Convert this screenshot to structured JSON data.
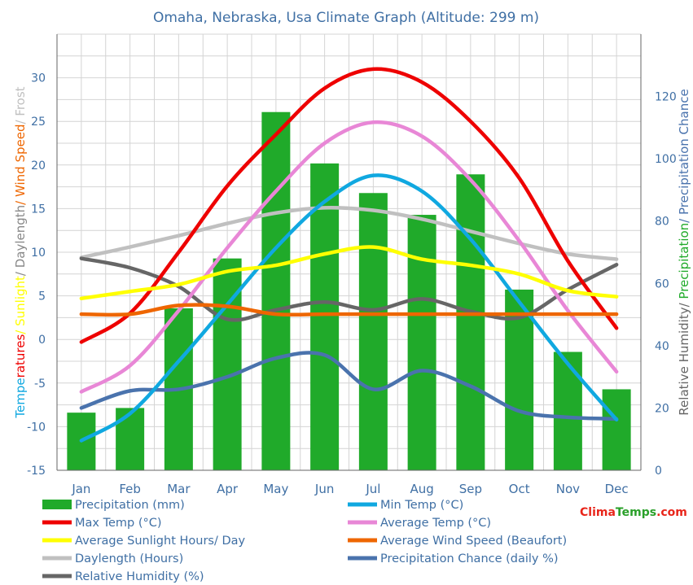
{
  "title": "Omaha, Nebraska, Usa Climate Graph (Altitude: 299 m)",
  "brand": {
    "part1": "Clima",
    "part2": "Temps",
    "part3": ".com"
  },
  "colors": {
    "text": "#3f6fa4",
    "precipitation": "#20aa2a",
    "min_temp": "#10a8e0",
    "max_temp": "#ee0000",
    "avg_temp": "#e887d6",
    "sunlight": "#ffff00",
    "wind": "#ee6600",
    "daylength": "#c0c0c0",
    "precip_chance": "#4a73ad",
    "humidity": "#666666"
  },
  "chart_data": {
    "type": "bar+line",
    "title": "Omaha, Nebraska, Usa Climate Graph (Altitude: 299 m)",
    "categories": [
      "Jan",
      "Feb",
      "Mar",
      "Apr",
      "May",
      "Jun",
      "Jul",
      "Aug",
      "Sep",
      "Oct",
      "Nov",
      "Dec"
    ],
    "left_axis": {
      "ylim": [
        -15,
        35
      ],
      "ticks": [
        30,
        25,
        20,
        15,
        10,
        5,
        0,
        -5,
        -10,
        -15
      ],
      "label_parts": [
        {
          "text": "Temperatures",
          "color": "#10a8e0",
          "split": 5
        },
        {
          "text": "/ Sunlight",
          "color": "#ffff00"
        },
        {
          "text": "/ Daylength",
          "color": "#888888"
        },
        {
          "text": "/ Wind Speed",
          "color": "#ee6600"
        },
        {
          "text": "/ Frost",
          "color": "#c0c0c0"
        }
      ]
    },
    "right_axis": {
      "ylim": [
        0,
        140
      ],
      "ticks": [
        120,
        100,
        80,
        60,
        40,
        20,
        0
      ],
      "label_parts": [
        {
          "text": "Relative Humidity",
          "color": "#666666"
        },
        {
          "text": "/ ",
          "color": "#666666"
        },
        {
          "text": "Precipitation",
          "color": "#20aa2a"
        },
        {
          "text": "/ Precipitation Chance",
          "color": "#4a73ad"
        }
      ]
    },
    "series": [
      {
        "name": "Precipitation (mm)",
        "type": "bar",
        "axis": "right",
        "color": "#20aa2a",
        "values": [
          18.5,
          20,
          52,
          68,
          115,
          98.5,
          89,
          82,
          95,
          58,
          38,
          26
        ]
      },
      {
        "name": "Min Temp (°C)",
        "type": "line",
        "axis": "left",
        "color": "#10a8e0",
        "values": [
          -11.6,
          -8.5,
          -2.5,
          4.0,
          10.5,
          15.8,
          18.8,
          17.0,
          11.5,
          4.3,
          -2.8,
          -9.2
        ]
      },
      {
        "name": "Max Temp (°C)",
        "type": "line",
        "axis": "left",
        "color": "#ee0000",
        "values": [
          -0.3,
          3.0,
          10.0,
          17.6,
          23.5,
          28.8,
          31.0,
          29.5,
          25.0,
          18.5,
          9.0,
          1.3
        ]
      },
      {
        "name": "Average Temp (°C)",
        "type": "line",
        "axis": "left",
        "color": "#e887d6",
        "values": [
          -6.0,
          -3.0,
          3.3,
          10.5,
          17.0,
          22.5,
          24.9,
          23.3,
          18.3,
          11.3,
          3.3,
          -3.7
        ]
      },
      {
        "name": "Average Sunlight Hours/ Day",
        "type": "line",
        "axis": "left",
        "color": "#ffff00",
        "values": [
          4.7,
          5.5,
          6.3,
          7.8,
          8.5,
          9.8,
          10.6,
          9.2,
          8.5,
          7.5,
          5.6,
          4.9
        ]
      },
      {
        "name": "Average Wind Speed (Beaufort)",
        "type": "line",
        "axis": "left",
        "color": "#ee6600",
        "values": [
          2.9,
          2.9,
          3.9,
          3.8,
          2.9,
          2.9,
          2.9,
          2.9,
          2.9,
          2.9,
          2.9,
          2.9
        ]
      },
      {
        "name": "Daylength (Hours)",
        "type": "line",
        "axis": "left",
        "color": "#c0c0c0",
        "values": [
          9.4,
          10.6,
          11.9,
          13.3,
          14.5,
          15.1,
          14.8,
          13.8,
          12.4,
          11.0,
          9.8,
          9.2
        ]
      },
      {
        "name": "Precipitation Chance (daily %)",
        "type": "line",
        "axis": "right",
        "color": "#4a73ad",
        "values": [
          20,
          25.5,
          26,
          30,
          36,
          37,
          26,
          32,
          27,
          19,
          17,
          16.5
        ]
      },
      {
        "name": "Relative Humidity (%)",
        "type": "line",
        "axis": "right",
        "color": "#666666",
        "values": [
          68,
          65,
          59,
          48.5,
          51.5,
          54,
          51.5,
          55,
          51,
          49,
          58,
          66
        ]
      }
    ],
    "legend_position": "bottom"
  }
}
